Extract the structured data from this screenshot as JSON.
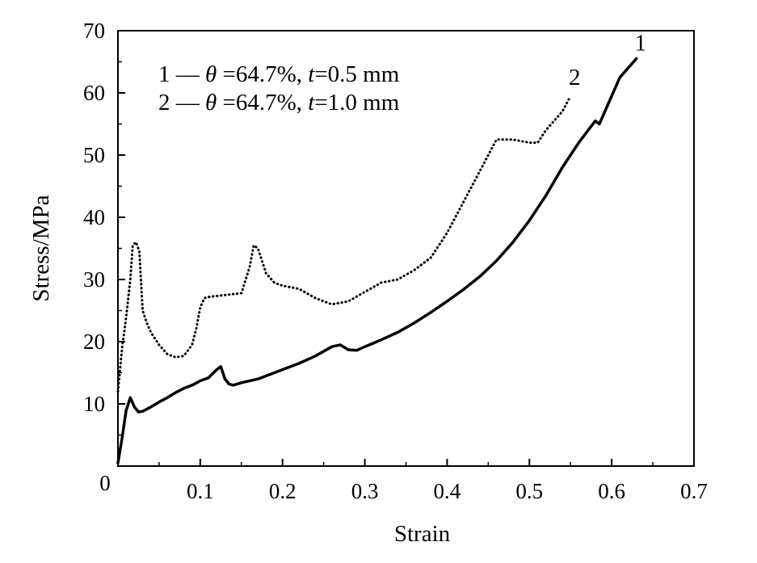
{
  "chart_data": {
    "type": "line",
    "xlabel": "Strain",
    "ylabel": "Stress/MPa",
    "xlim": [
      0,
      0.7
    ],
    "ylim": [
      0,
      70
    ],
    "x_ticks": [
      "0",
      "0.1",
      "0.2",
      "0.3",
      "0.4",
      "0.5",
      "0.6",
      "0.7"
    ],
    "y_ticks": [
      "10",
      "20",
      "30",
      "40",
      "50",
      "60",
      "70"
    ],
    "grid": false,
    "legend_position": "top-left",
    "legend": [
      {
        "num": "1",
        "dash": " — ",
        "theta_sym": "θ",
        "theta_val": " =64.7%, ",
        "t_sym": "t",
        "t_val": "=0.5 mm"
      },
      {
        "num": "2",
        "dash": " — ",
        "theta_sym": "θ",
        "theta_val": " =64.7%, ",
        "t_sym": "t",
        "t_val": "=1.0 mm"
      }
    ],
    "series": [
      {
        "label": "1",
        "style": "solid",
        "color": "#000000",
        "x": [
          0.0,
          0.005,
          0.01,
          0.015,
          0.02,
          0.025,
          0.03,
          0.04,
          0.05,
          0.06,
          0.07,
          0.08,
          0.09,
          0.1,
          0.11,
          0.12,
          0.125,
          0.13,
          0.135,
          0.14,
          0.15,
          0.17,
          0.19,
          0.2,
          0.22,
          0.24,
          0.26,
          0.27,
          0.28,
          0.29,
          0.3,
          0.32,
          0.34,
          0.36,
          0.38,
          0.4,
          0.42,
          0.44,
          0.46,
          0.48,
          0.5,
          0.52,
          0.54,
          0.56,
          0.58,
          0.585,
          0.59,
          0.6,
          0.61,
          0.62,
          0.63
        ],
        "y": [
          0.5,
          4.5,
          9.0,
          11.0,
          9.5,
          8.7,
          8.8,
          9.5,
          10.3,
          11.0,
          11.8,
          12.5,
          13.0,
          13.7,
          14.2,
          15.5,
          16.0,
          14.0,
          13.2,
          13.0,
          13.4,
          14.0,
          15.0,
          15.5,
          16.5,
          17.7,
          19.2,
          19.5,
          18.7,
          18.6,
          19.2,
          20.3,
          21.5,
          23.0,
          24.7,
          26.5,
          28.4,
          30.5,
          33.0,
          36.0,
          39.5,
          43.5,
          48.0,
          52.0,
          55.5,
          55.0,
          56.5,
          59.5,
          62.5,
          64.0,
          65.5
        ]
      },
      {
        "label": "2",
        "style": "dotted",
        "color": "#000000",
        "x": [
          0.0,
          0.005,
          0.01,
          0.015,
          0.018,
          0.022,
          0.026,
          0.03,
          0.035,
          0.04,
          0.05,
          0.06,
          0.07,
          0.08,
          0.09,
          0.095,
          0.1,
          0.105,
          0.11,
          0.13,
          0.15,
          0.16,
          0.165,
          0.17,
          0.175,
          0.18,
          0.19,
          0.2,
          0.22,
          0.24,
          0.26,
          0.28,
          0.3,
          0.32,
          0.34,
          0.36,
          0.38,
          0.4,
          0.42,
          0.44,
          0.46,
          0.48,
          0.5,
          0.51,
          0.52,
          0.54,
          0.55
        ],
        "y": [
          12.0,
          19.0,
          24.0,
          30.0,
          35.5,
          36.0,
          34.5,
          25.0,
          23.0,
          21.5,
          19.5,
          18.0,
          17.5,
          17.7,
          19.5,
          22.0,
          25.5,
          27.0,
          27.2,
          27.5,
          27.8,
          32.0,
          35.5,
          35.0,
          33.0,
          31.0,
          29.5,
          29.0,
          28.5,
          27.0,
          26.0,
          26.5,
          28.0,
          29.5,
          30.0,
          31.5,
          33.5,
          37.5,
          42.5,
          47.5,
          52.5,
          52.5,
          52.0,
          52.0,
          54.0,
          57.0,
          59.5
        ]
      }
    ],
    "annotations": [
      {
        "text": "1",
        "x": 0.635,
        "y": 66.8
      },
      {
        "text": "2",
        "x": 0.555,
        "y": 61.3
      }
    ]
  }
}
